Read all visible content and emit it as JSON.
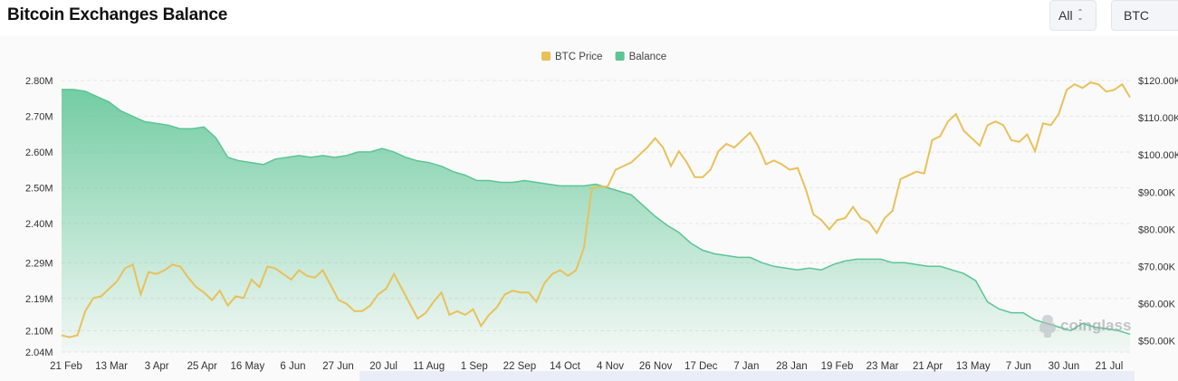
{
  "title": "Bitcoin Exchanges Balance",
  "controls": {
    "range_value": "All",
    "unit_value": "BTC"
  },
  "watermark": "coinglass",
  "colors": {
    "price": "#e8c15a",
    "balance": "#5cc594",
    "grid": "#e6e6e6",
    "axis_text": "#333333"
  },
  "chart_data": {
    "type": "area",
    "legend_position": "top-center",
    "legend": [
      "BTC Price",
      "Balance"
    ],
    "x_tick_labels": [
      "21 Feb",
      "13 Mar",
      "3 Apr",
      "25 Apr",
      "16 May",
      "6 Jun",
      "27 Jun",
      "20 Jul",
      "11 Aug",
      "1 Sep",
      "22 Sep",
      "14 Oct",
      "4 Nov",
      "26 Nov",
      "17 Dec",
      "7 Jan",
      "28 Jan",
      "19 Feb",
      "23 Mar",
      "21 Apr",
      "13 May",
      "7 Jun",
      "30 Jun",
      "21 Jul"
    ],
    "y_left_tick_labels": [
      "2.80M",
      "2.70M",
      "2.60M",
      "2.50M",
      "2.40M",
      "2.29M",
      "2.19M",
      "2.10M",
      "2.04M"
    ],
    "y_left_tick_values": [
      2.8,
      2.7,
      2.6,
      2.5,
      2.4,
      2.29,
      2.19,
      2.1,
      2.04
    ],
    "y_right_tick_labels": [
      "$120.00K",
      "$110.00K",
      "$100.00K",
      "$90.00K",
      "$80.00K",
      "$70.00K",
      "$60.00K",
      "$50.00K"
    ],
    "y_right_tick_values": [
      120,
      110,
      100,
      90,
      80,
      70,
      60,
      50
    ],
    "y_left_range": [
      2.04,
      2.8
    ],
    "y_right_range": [
      47,
      120
    ],
    "grid": true,
    "series": [
      {
        "name": "Balance",
        "unit": "M BTC",
        "axis": "left",
        "values": [
          2.775,
          2.775,
          2.77,
          2.755,
          2.74,
          2.715,
          2.7,
          2.685,
          2.68,
          2.675,
          2.665,
          2.665,
          2.67,
          2.64,
          2.585,
          2.575,
          2.57,
          2.565,
          2.58,
          2.585,
          2.59,
          2.585,
          2.59,
          2.585,
          2.59,
          2.6,
          2.6,
          2.61,
          2.6,
          2.585,
          2.575,
          2.57,
          2.56,
          2.545,
          2.535,
          2.52,
          2.52,
          2.515,
          2.515,
          2.52,
          2.515,
          2.51,
          2.505,
          2.505,
          2.505,
          2.51,
          2.5,
          2.49,
          2.48,
          2.45,
          2.42,
          2.395,
          2.375,
          2.345,
          2.325,
          2.315,
          2.31,
          2.305,
          2.305,
          2.29,
          2.28,
          2.275,
          2.27,
          2.275,
          2.27,
          2.285,
          2.295,
          2.3,
          2.3,
          2.3,
          2.29,
          2.29,
          2.285,
          2.28,
          2.28,
          2.27,
          2.26,
          2.24,
          2.18,
          2.16,
          2.15,
          2.15,
          2.13,
          2.12,
          2.11,
          2.1,
          2.12,
          2.11,
          2.105,
          2.1,
          2.09
        ]
      },
      {
        "name": "BTC Price",
        "unit": "K USD",
        "axis": "right",
        "values": [
          51.5,
          51.0,
          51.5,
          58.0,
          61.5,
          62.0,
          64.0,
          66.0,
          69.5,
          70.5,
          62.5,
          68.5,
          68.0,
          69.0,
          70.5,
          70.0,
          67.0,
          64.5,
          63.0,
          61.0,
          63.5,
          59.5,
          62.0,
          61.5,
          66.5,
          64.5,
          70.0,
          69.5,
          68.0,
          66.5,
          69.0,
          67.5,
          67.0,
          69.0,
          65.0,
          61.0,
          60.0,
          58.0,
          58.0,
          59.5,
          62.5,
          64.0,
          68.0,
          64.0,
          60.0,
          56.0,
          57.5,
          60.5,
          63.0,
          57.0,
          58.0,
          57.0,
          58.5,
          54.0,
          57.0,
          59.0,
          62.5,
          63.5,
          63.0,
          63.0,
          60.5,
          65.5,
          68.0,
          69.0,
          67.5,
          69.0,
          75.0,
          91.0,
          91.5,
          91.5,
          96.0,
          97.0,
          98.0,
          100.0,
          102.0,
          104.5,
          102.0,
          97.0,
          101.0,
          98.0,
          94.0,
          94.0,
          96.0,
          101.0,
          103.0,
          102.0,
          104.0,
          106.0,
          102.5,
          97.5,
          98.5,
          97.5,
          96.0,
          96.5,
          91.0,
          84.0,
          82.5,
          80.0,
          82.5,
          83.0,
          86.0,
          83.0,
          82.0,
          79.0,
          83.0,
          85.0,
          93.5,
          94.5,
          95.5,
          95.0,
          104.0,
          105.0,
          109.0,
          111.0,
          106.5,
          104.5,
          102.5,
          108.0,
          109.0,
          108.0,
          104.0,
          103.5,
          105.5,
          101.0,
          108.5,
          108.0,
          111.0,
          117.5,
          119.0,
          118.0,
          119.5,
          119.0,
          117.0,
          117.5,
          119.0,
          115.5
        ]
      }
    ]
  }
}
